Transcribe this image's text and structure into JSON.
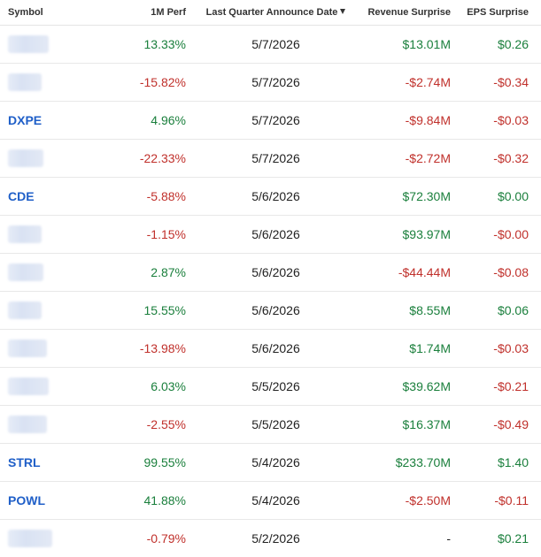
{
  "headers": {
    "symbol": "Symbol",
    "perf": "1M Perf",
    "date": "Last Quarter Announce Date",
    "revenue": "Revenue Surprise",
    "eps": "EPS Surprise",
    "sort_icon": "sort-descending-icon"
  },
  "colors": {
    "positive": "#1a7f3c",
    "negative": "#c0302b",
    "link": "#1f5fc8"
  },
  "rows": [
    {
      "symbol": "",
      "blurred": true,
      "perf": "13.33%",
      "date": "5/7/2026",
      "revenue": "$13.01M",
      "eps": "$0.26"
    },
    {
      "symbol": "",
      "blurred": true,
      "perf": "-15.82%",
      "date": "5/7/2026",
      "revenue": "-$2.74M",
      "eps": "-$0.34"
    },
    {
      "symbol": "DXPE",
      "blurred": false,
      "perf": "4.96%",
      "date": "5/7/2026",
      "revenue": "-$9.84M",
      "eps": "-$0.03"
    },
    {
      "symbol": "",
      "blurred": true,
      "perf": "-22.33%",
      "date": "5/7/2026",
      "revenue": "-$2.72M",
      "eps": "-$0.32"
    },
    {
      "symbol": "CDE",
      "blurred": false,
      "perf": "-5.88%",
      "date": "5/6/2026",
      "revenue": "$72.30M",
      "eps": "$0.00"
    },
    {
      "symbol": "",
      "blurred": true,
      "perf": "-1.15%",
      "date": "5/6/2026",
      "revenue": "$93.97M",
      "eps": "-$0.00"
    },
    {
      "symbol": "",
      "blurred": true,
      "perf": "2.87%",
      "date": "5/6/2026",
      "revenue": "-$44.44M",
      "eps": "-$0.08"
    },
    {
      "symbol": "",
      "blurred": true,
      "perf": "15.55%",
      "date": "5/6/2026",
      "revenue": "$8.55M",
      "eps": "$0.06"
    },
    {
      "symbol": "",
      "blurred": true,
      "perf": "-13.98%",
      "date": "5/6/2026",
      "revenue": "$1.74M",
      "eps": "-$0.03"
    },
    {
      "symbol": "",
      "blurred": true,
      "perf": "6.03%",
      "date": "5/5/2026",
      "revenue": "$39.62M",
      "eps": "-$0.21"
    },
    {
      "symbol": "",
      "blurred": true,
      "perf": "-2.55%",
      "date": "5/5/2026",
      "revenue": "$16.37M",
      "eps": "-$0.49"
    },
    {
      "symbol": "STRL",
      "blurred": false,
      "perf": "99.55%",
      "date": "5/4/2026",
      "revenue": "$233.70M",
      "eps": "$1.40"
    },
    {
      "symbol": "POWL",
      "blurred": false,
      "perf": "41.88%",
      "date": "5/4/2026",
      "revenue": "-$2.50M",
      "eps": "-$0.11"
    },
    {
      "symbol": "",
      "blurred": true,
      "perf": "-0.79%",
      "date": "5/2/2026",
      "revenue": "-",
      "eps": "$0.21"
    }
  ]
}
